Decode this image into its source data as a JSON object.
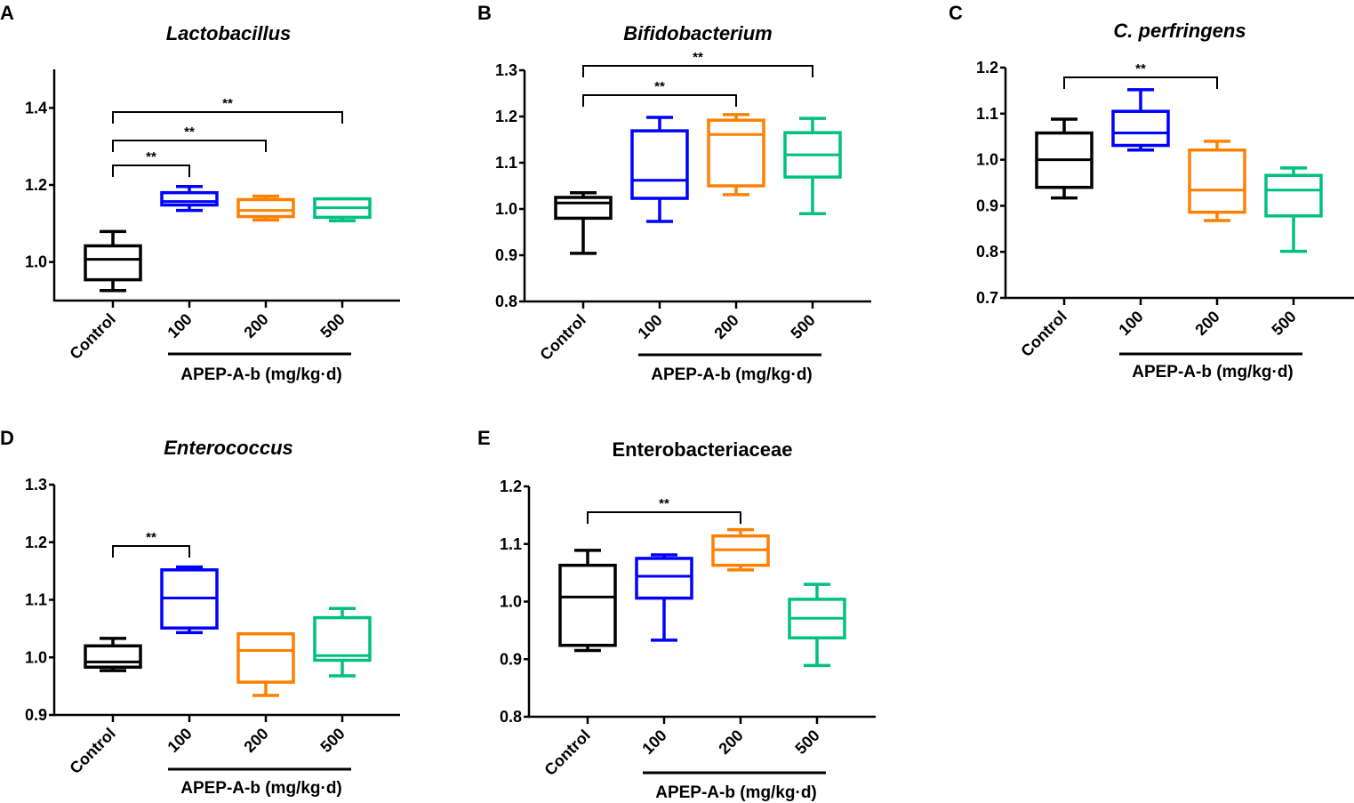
{
  "chart_data": [
    {
      "type": "box",
      "panel_label": "A",
      "title": "Lactobacillus",
      "title_italic": true,
      "categories": [
        "Control",
        "100",
        "200",
        "500"
      ],
      "group_label": "APEP-A-b (mg/kg·d)",
      "ylim": [
        0.9,
        1.5
      ],
      "yticks": [
        "1.0",
        "1.2",
        "1.4"
      ],
      "ytick_values": [
        1.0,
        1.2,
        1.4
      ],
      "series": [
        {
          "name": "Control",
          "min": 0.926,
          "q1": 0.954,
          "median": 1.007,
          "q3": 1.042,
          "max": 1.079
        },
        {
          "name": "100",
          "min": 1.134,
          "q1": 1.148,
          "median": 1.157,
          "q3": 1.18,
          "max": 1.196
        },
        {
          "name": "200",
          "min": 1.109,
          "q1": 1.118,
          "median": 1.134,
          "q3": 1.162,
          "max": 1.171
        },
        {
          "name": "500",
          "min": 1.107,
          "q1": 1.116,
          "median": 1.141,
          "q3": 1.164,
          "max": 1.164
        }
      ],
      "comparisons": [
        {
          "from": "Control",
          "to": "100",
          "label": "**"
        },
        {
          "from": "Control",
          "to": "200",
          "label": "**"
        },
        {
          "from": "Control",
          "to": "500",
          "label": "**"
        }
      ]
    },
    {
      "type": "box",
      "panel_label": "B",
      "title": "Bifidobacterium",
      "title_italic": true,
      "categories": [
        "Control",
        "100",
        "200",
        "500"
      ],
      "group_label": "APEP-A-b (mg/kg·d)",
      "ylim": [
        0.8,
        1.3
      ],
      "yticks": [
        "0.8",
        "0.9",
        "1.0",
        "1.1",
        "1.2",
        "1.3"
      ],
      "ytick_values": [
        0.8,
        0.9,
        1.0,
        1.1,
        1.2,
        1.3
      ],
      "series": [
        {
          "name": "Control",
          "min": 0.904,
          "q1": 0.98,
          "median": 1.013,
          "q3": 1.025,
          "max": 1.035
        },
        {
          "name": "100",
          "min": 0.973,
          "q1": 1.023,
          "median": 1.062,
          "q3": 1.169,
          "max": 1.198
        },
        {
          "name": "200",
          "min": 1.031,
          "q1": 1.05,
          "median": 1.161,
          "q3": 1.192,
          "max": 1.204
        },
        {
          "name": "500",
          "min": 0.99,
          "q1": 1.069,
          "median": 1.117,
          "q3": 1.165,
          "max": 1.196
        }
      ],
      "comparisons": [
        {
          "from": "Control",
          "to": "200",
          "label": "**"
        },
        {
          "from": "Control",
          "to": "500",
          "label": "**"
        }
      ]
    },
    {
      "type": "box",
      "panel_label": "C",
      "title": "C. perfringens",
      "title_italic": true,
      "categories": [
        "Control",
        "100",
        "200",
        "500"
      ],
      "group_label": "APEP-A-b (mg/kg·d)",
      "ylim": [
        0.7,
        1.2
      ],
      "yticks": [
        "0.7",
        "0.8",
        "0.9",
        "1.0",
        "1.1",
        "1.2"
      ],
      "ytick_values": [
        0.7,
        0.8,
        0.9,
        1.0,
        1.1,
        1.2
      ],
      "series": [
        {
          "name": "Control",
          "min": 0.917,
          "q1": 0.94,
          "median": 1.0,
          "q3": 1.058,
          "max": 1.088
        },
        {
          "name": "100",
          "min": 1.021,
          "q1": 1.031,
          "median": 1.058,
          "q3": 1.105,
          "max": 1.152
        },
        {
          "name": "200",
          "min": 0.868,
          "q1": 0.886,
          "median": 0.934,
          "q3": 1.021,
          "max": 1.04
        },
        {
          "name": "500",
          "min": 0.801,
          "q1": 0.878,
          "median": 0.934,
          "q3": 0.966,
          "max": 0.982
        }
      ],
      "comparisons": [
        {
          "from": "Control",
          "to": "200",
          "label": "**"
        }
      ]
    },
    {
      "type": "box",
      "panel_label": "D",
      "title": "Enterococcus",
      "title_italic": true,
      "categories": [
        "Control",
        "100",
        "200",
        "500"
      ],
      "group_label": "APEP-A-b (mg/kg·d)",
      "ylim": [
        0.9,
        1.3
      ],
      "yticks": [
        "0.9",
        "1.0",
        "1.1",
        "1.2",
        "1.3"
      ],
      "ytick_values": [
        0.9,
        1.0,
        1.1,
        1.2,
        1.3
      ],
      "series": [
        {
          "name": "Control",
          "min": 0.977,
          "q1": 0.983,
          "median": 0.992,
          "q3": 1.02,
          "max": 1.033
        },
        {
          "name": "100",
          "min": 1.043,
          "q1": 1.051,
          "median": 1.103,
          "q3": 1.152,
          "max": 1.157
        },
        {
          "name": "200",
          "min": 0.934,
          "q1": 0.957,
          "median": 1.012,
          "q3": 1.041,
          "max": 1.041
        },
        {
          "name": "500",
          "min": 0.968,
          "q1": 0.995,
          "median": 1.003,
          "q3": 1.069,
          "max": 1.085
        }
      ],
      "comparisons": [
        {
          "from": "Control",
          "to": "100",
          "label": "**"
        }
      ]
    },
    {
      "type": "box",
      "panel_label": "E",
      "title": "Enterobacteriaceae",
      "title_italic": false,
      "categories": [
        "Control",
        "100",
        "200",
        "500"
      ],
      "group_label": "APEP-A-b (mg/kg·d)",
      "ylim": [
        0.8,
        1.2
      ],
      "yticks": [
        "0.8",
        "0.9",
        "1.0",
        "1.1",
        "1.2"
      ],
      "ytick_values": [
        0.8,
        0.9,
        1.0,
        1.1,
        1.2
      ],
      "series": [
        {
          "name": "Control",
          "min": 0.915,
          "q1": 0.924,
          "median": 1.008,
          "q3": 1.063,
          "max": 1.089
        },
        {
          "name": "100",
          "min": 0.933,
          "q1": 1.006,
          "median": 1.044,
          "q3": 1.075,
          "max": 1.081
        },
        {
          "name": "200",
          "min": 1.055,
          "q1": 1.063,
          "median": 1.09,
          "q3": 1.114,
          "max": 1.125
        },
        {
          "name": "500",
          "min": 0.889,
          "q1": 0.937,
          "median": 0.971,
          "q3": 1.004,
          "max": 1.03
        }
      ],
      "comparisons": [
        {
          "from": "Control",
          "to": "200",
          "label": "**"
        }
      ]
    }
  ],
  "colors": {
    "Control": "#000000",
    "100": "#0000ff",
    "200": "#ff8000",
    "500": "#00c07f"
  }
}
